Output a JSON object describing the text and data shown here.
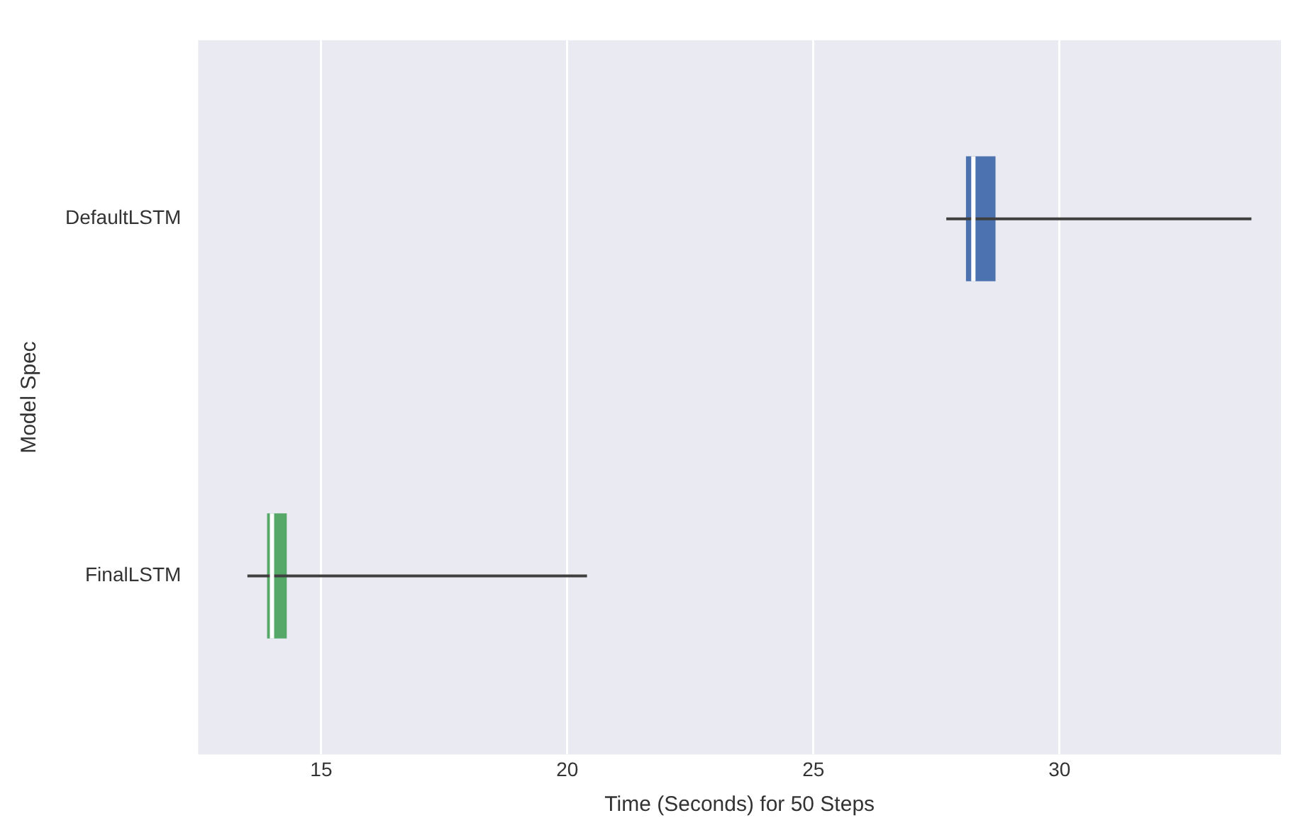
{
  "chart_data": {
    "type": "box",
    "orientation": "horizontal",
    "categories": [
      "DefaultLSTM",
      "FinalLSTM"
    ],
    "boxes": [
      {
        "low": 27.7,
        "q1": 28.1,
        "median": 28.25,
        "q3": 28.7,
        "high": 33.9
      },
      {
        "low": 13.5,
        "q1": 13.9,
        "median": 14.0,
        "q3": 14.3,
        "high": 20.4
      }
    ],
    "colors": [
      "#4c72b0",
      "#55a868"
    ],
    "xlim": [
      12.5,
      34.5
    ],
    "xticks": [
      15,
      20,
      25,
      30
    ],
    "xlabel": "Time (Seconds) for 50 Steps",
    "ylabel": "Model Spec",
    "grid": "x",
    "legend": false
  }
}
